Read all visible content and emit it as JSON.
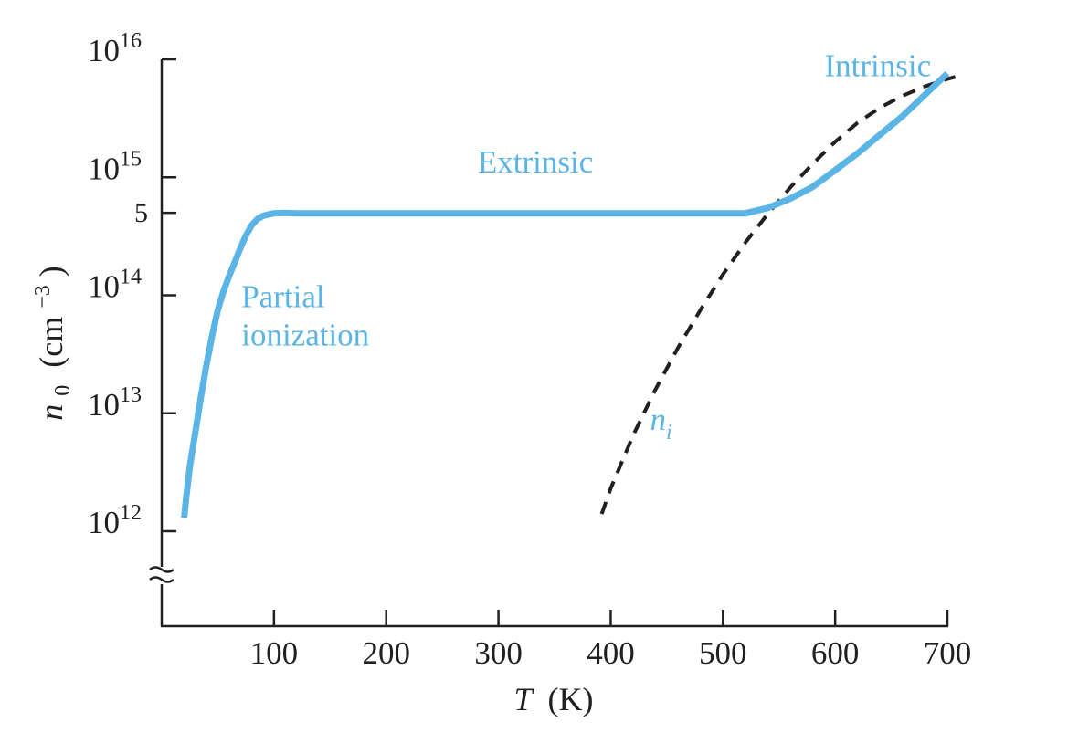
{
  "chart_data": {
    "type": "line",
    "title": "",
    "xlabel": {
      "var": "T",
      "unit": "(K)"
    },
    "ylabel": {
      "var": "n",
      "sub": "0",
      "unit_open": "(cm",
      "unit_sup": "−3",
      "unit_close": ")"
    },
    "x_scale": "linear",
    "y_scale": "log",
    "xlim": [
      0,
      700
    ],
    "ylim": [
      1000000000000.0,
      1e+16
    ],
    "axis_break": "y",
    "grid": false,
    "legend": "none",
    "x_ticks": [
      {
        "value": 100,
        "label": "100"
      },
      {
        "value": 200,
        "label": "200"
      },
      {
        "value": 300,
        "label": "300"
      },
      {
        "value": 400,
        "label": "400"
      },
      {
        "value": 500,
        "label": "500"
      },
      {
        "value": 600,
        "label": "600"
      },
      {
        "value": 700,
        "label": "700"
      }
    ],
    "y_ticks": [
      {
        "value": 1000000000000.0,
        "base": "10",
        "exp": "12"
      },
      {
        "value": 10000000000000.0,
        "base": "10",
        "exp": "13"
      },
      {
        "value": 100000000000000.0,
        "base": "10",
        "exp": "14"
      },
      {
        "value": 1000000000000000.0,
        "base": "10",
        "exp": "15"
      },
      {
        "value": 1e+16,
        "base": "10",
        "exp": "16"
      }
    ],
    "y_minor_ticks": [
      {
        "value": 500000000000000.0,
        "label": "5"
      }
    ],
    "series": [
      {
        "name": "n0",
        "style": "solid",
        "color": "#5ab4e5",
        "points": [
          [
            20,
            1300000000000.0
          ],
          [
            22,
            2000000000000.0
          ],
          [
            25,
            3500000000000.0
          ],
          [
            30,
            7000000000000.0
          ],
          [
            35,
            14000000000000.0
          ],
          [
            40,
            26000000000000.0
          ],
          [
            45,
            46000000000000.0
          ],
          [
            50,
            75000000000000.0
          ],
          [
            55,
            108000000000000.0
          ],
          [
            60,
            145000000000000.0
          ],
          [
            65,
            190000000000000.0
          ],
          [
            70,
            250000000000000.0
          ],
          [
            75,
            320000000000000.0
          ],
          [
            80,
            390000000000000.0
          ],
          [
            85,
            440000000000000.0
          ],
          [
            90,
            470000000000000.0
          ],
          [
            95,
            485000000000000.0
          ],
          [
            100,
            495000000000000.0
          ],
          [
            110,
            500000000000000.0
          ],
          [
            120,
            495000000000000.0
          ],
          [
            150,
            495000000000000.0
          ],
          [
            200,
            495000000000000.0
          ],
          [
            300,
            495000000000000.0
          ],
          [
            400,
            495000000000000.0
          ],
          [
            500,
            495000000000000.0
          ],
          [
            520,
            495000000000000.0
          ],
          [
            540,
            550000000000000.0
          ],
          [
            560,
            660000000000000.0
          ],
          [
            580,
            830000000000000.0
          ],
          [
            600,
            1150000000000000.0
          ],
          [
            620,
            1600000000000000.0
          ],
          [
            640,
            2300000000000000.0
          ],
          [
            660,
            3300000000000000.0
          ],
          [
            680,
            5000000000000000.0
          ],
          [
            700,
            7600000000000000.0
          ]
        ]
      },
      {
        "name": "ni",
        "style": "dashed",
        "color": "#231f20",
        "points": [
          [
            392,
            1400000000000.0
          ],
          [
            400,
            2300000000000.0
          ],
          [
            420,
            6500000000000.0
          ],
          [
            440,
            16000000000000.0
          ],
          [
            460,
            36000000000000.0
          ],
          [
            480,
            75000000000000.0
          ],
          [
            500,
            150000000000000.0
          ],
          [
            520,
            280000000000000.0
          ],
          [
            540,
            490000000000000.0
          ],
          [
            560,
            820000000000000.0
          ],
          [
            580,
            1300000000000000.0
          ],
          [
            600,
            2000000000000000.0
          ],
          [
            620,
            2900000000000000.0
          ],
          [
            640,
            3900000000000000.0
          ],
          [
            660,
            4900000000000000.0
          ],
          [
            680,
            5900000000000000.0
          ],
          [
            700,
            6800000000000000.0
          ],
          [
            707,
            7100000000000000.0
          ]
        ]
      }
    ],
    "annotations": [
      {
        "id": "extrinsic",
        "lines": [
          "Extrinsic"
        ],
        "x": 333,
        "y": 1100000000000000.0,
        "anchor": "middle"
      },
      {
        "id": "intrinsic",
        "lines": [
          "Intrinsic"
        ],
        "x": 638,
        "y": 7200000000000000.0,
        "anchor": "middle"
      },
      {
        "id": "partial",
        "lines": [
          "Partial",
          "ionization"
        ],
        "x": 71,
        "y": 79000000000000.0,
        "anchor": "start"
      }
    ],
    "series_label": {
      "base": "n",
      "sub": "i",
      "x": 435,
      "y": 7200000000000.0
    }
  },
  "colors": {
    "accent": "#5ab4e5",
    "ink": "#231f20"
  }
}
